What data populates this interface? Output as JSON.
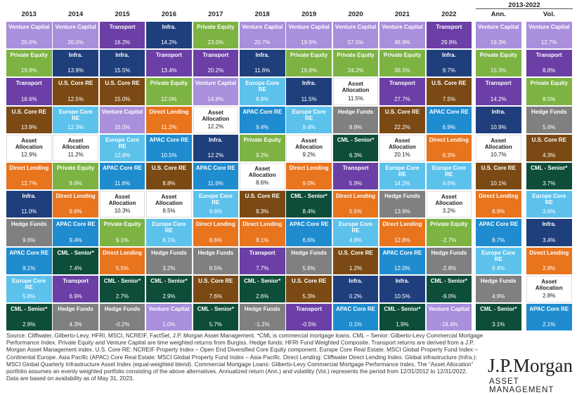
{
  "header": {
    "span": "2013-2022",
    "columns": [
      "2013",
      "2014",
      "2015",
      "2016",
      "2017",
      "2018",
      "2019",
      "2020",
      "2021",
      "2022",
      "Ann.",
      "Vol."
    ]
  },
  "table": {
    "columns": [
      [
        {
          "label": "Venture Capital",
          "value": "26.0%",
          "color": "#a98fdc"
        },
        {
          "label": "Private Equity",
          "value": "19.8%",
          "color": "#7cb342"
        },
        {
          "label": "Transport",
          "value": "18.6%",
          "color": "#6b3fa6"
        },
        {
          "label": "U.S. Core RE",
          "value": "13.9%",
          "color": "#7b4a14"
        },
        {
          "label": "Asset Allocation",
          "value": "12.9%",
          "color": "#ffffff"
        },
        {
          "label": "Direct Lending",
          "value": "12.7%",
          "color": "#e8741e"
        },
        {
          "label": "Infra.",
          "value": "11.0%",
          "color": "#1f3f7c"
        },
        {
          "label": "Hedge Funds",
          "value": "9.6%",
          "color": "#808080"
        },
        {
          "label": "APAC Core RE",
          "value": "9.1%",
          "color": "#1f8ccf"
        },
        {
          "label": "Europe Core RE",
          "value": "5.8%",
          "color": "#5cc2ec"
        },
        {
          "label": "CML - Senior*",
          "value": "2.9%",
          "color": "#0d4d3a"
        }
      ],
      [
        {
          "label": "Venture Capital",
          "value": "26.0%",
          "color": "#a98fdc"
        },
        {
          "label": "Infra.",
          "value": "13.9%",
          "color": "#1f3f7c"
        },
        {
          "label": "U.S. Core RE",
          "value": "12.5%",
          "color": "#7b4a14"
        },
        {
          "label": "Europe Core RE",
          "value": "12.3%",
          "color": "#5cc2ec"
        },
        {
          "label": "Asset Allocation",
          "value": "11.2%",
          "color": "#ffffff"
        },
        {
          "label": "Private Equity",
          "value": "9.8%",
          "color": "#7cb342"
        },
        {
          "label": "Direct Lending",
          "value": "9.6%",
          "color": "#e8741e"
        },
        {
          "label": "APAC Core RE",
          "value": "9.4%",
          "color": "#1f8ccf"
        },
        {
          "label": "CML - Senior*",
          "value": "7.4%",
          "color": "#0d4d3a"
        },
        {
          "label": "Transport",
          "value": "6.9%",
          "color": "#6b3fa6"
        },
        {
          "label": "Hedge Funds",
          "value": "4.3%",
          "color": "#808080"
        }
      ],
      [
        {
          "label": "Transport",
          "value": "16.2%",
          "color": "#6b3fa6"
        },
        {
          "label": "Infra.",
          "value": "15.5%",
          "color": "#1f3f7c"
        },
        {
          "label": "U.S. Core RE",
          "value": "15.0%",
          "color": "#7b4a14"
        },
        {
          "label": "Venture Capital",
          "value": "15.0%",
          "color": "#a98fdc"
        },
        {
          "label": "Europe Core RE",
          "value": "12.8%",
          "color": "#5cc2ec"
        },
        {
          "label": "APAC Core RE",
          "value": "11.6%",
          "color": "#1f8ccf"
        },
        {
          "label": "Asset Allocation",
          "value": "10.3%",
          "color": "#ffffff"
        },
        {
          "label": "Private Equity",
          "value": "9.1%",
          "color": "#7cb342"
        },
        {
          "label": "Direct Lending",
          "value": "5.5%",
          "color": "#e8741e"
        },
        {
          "label": "CML - Senior*",
          "value": "2.7%",
          "color": "#0d4d3a"
        },
        {
          "label": "Hedge Funds",
          "value": "-0.2%",
          "color": "#808080"
        }
      ],
      [
        {
          "label": "Infra.",
          "value": "14.2%",
          "color": "#1f3f7c"
        },
        {
          "label": "Transport",
          "value": "13.4%",
          "color": "#6b3fa6"
        },
        {
          "label": "Private Equity",
          "value": "12.0%",
          "color": "#7cb342"
        },
        {
          "label": "Direct Lending",
          "value": "11.2%",
          "color": "#e8741e"
        },
        {
          "label": "APAC Core RE",
          "value": "10.5%",
          "color": "#1f8ccf"
        },
        {
          "label": "U.S. Core RE",
          "value": "8.8%",
          "color": "#7b4a14"
        },
        {
          "label": "Asset Allocation",
          "value": "8.5%",
          "color": "#ffffff"
        },
        {
          "label": "Europe Core RE",
          "value": "8.1%",
          "color": "#5cc2ec"
        },
        {
          "label": "Hedge Funds",
          "value": "3.2%",
          "color": "#808080"
        },
        {
          "label": "CML - Senior*",
          "value": "2.9%",
          "color": "#0d4d3a"
        },
        {
          "label": "Venture Capital",
          "value": "1.0%",
          "color": "#a98fdc"
        }
      ],
      [
        {
          "label": "Private Equity",
          "value": "23.0%",
          "color": "#7cb342"
        },
        {
          "label": "Transport",
          "value": "20.2%",
          "color": "#6b3fa6"
        },
        {
          "label": "Venture Capital",
          "value": "14.8%",
          "color": "#a98fdc"
        },
        {
          "label": "Asset Allocation",
          "value": "12.2%",
          "color": "#ffffff"
        },
        {
          "label": "Infra.",
          "value": "12.2%",
          "color": "#1f3f7c"
        },
        {
          "label": "APAC Core RE",
          "value": "11.6%",
          "color": "#1f8ccf"
        },
        {
          "label": "Europe Core RE",
          "value": "9.6%",
          "color": "#5cc2ec"
        },
        {
          "label": "Direct Lending",
          "value": "8.6%",
          "color": "#e8741e"
        },
        {
          "label": "Hedge Funds",
          "value": "8.5%",
          "color": "#808080"
        },
        {
          "label": "U.S. Core RE",
          "value": "7.6%",
          "color": "#7b4a14"
        },
        {
          "label": "CML - Senior*",
          "value": "5.7%",
          "color": "#0d4d3a"
        }
      ],
      [
        {
          "label": "Venture Capital",
          "value": "20.7%",
          "color": "#a98fdc"
        },
        {
          "label": "Infra.",
          "value": "11.6%",
          "color": "#1f3f7c"
        },
        {
          "label": "Europe Core RE",
          "value": "9.8%",
          "color": "#5cc2ec"
        },
        {
          "label": "APAC Core RE",
          "value": "9.4%",
          "color": "#1f8ccf"
        },
        {
          "label": "Private Equity",
          "value": "9.2%",
          "color": "#7cb342"
        },
        {
          "label": "Asset Allocation",
          "value": "8.6%",
          "color": "#ffffff"
        },
        {
          "label": "U.S. Core RE",
          "value": "8.3%",
          "color": "#7b4a14"
        },
        {
          "label": "Direct Lending",
          "value": "8.1%",
          "color": "#e8741e"
        },
        {
          "label": "Transport",
          "value": "7.7%",
          "color": "#6b3fa6"
        },
        {
          "label": "CML - Senior*",
          "value": "2.6%",
          "color": "#0d4d3a"
        },
        {
          "label": "Hedge Funds",
          "value": "-1.2%",
          "color": "#808080"
        }
      ],
      [
        {
          "label": "Venture Capital",
          "value": "19.9%",
          "color": "#a98fdc"
        },
        {
          "label": "Private Equity",
          "value": "16.8%",
          "color": "#7cb342"
        },
        {
          "label": "Infra.",
          "value": "11.5%",
          "color": "#1f3f7c"
        },
        {
          "label": "Europe Core RE",
          "value": "9.4%",
          "color": "#5cc2ec"
        },
        {
          "label": "Asset Allocation",
          "value": "9.2%",
          "color": "#ffffff"
        },
        {
          "label": "Direct Lending",
          "value": "9.0%",
          "color": "#e8741e"
        },
        {
          "label": "CML - Senior*",
          "value": "8.4%",
          "color": "#0d4d3a"
        },
        {
          "label": "APAC Core RE",
          "value": "6.6%",
          "color": "#1f8ccf"
        },
        {
          "label": "Hedge Funds",
          "value": "5.6%",
          "color": "#808080"
        },
        {
          "label": "U.S. Core RE",
          "value": "5.3%",
          "color": "#7b4a14"
        },
        {
          "label": "Transport",
          "value": "-0.5%",
          "color": "#6b3fa6"
        }
      ],
      [
        {
          "label": "Venture Capital",
          "value": "57.5%",
          "color": "#a98fdc"
        },
        {
          "label": "Private Equity",
          "value": "24.2%",
          "color": "#7cb342"
        },
        {
          "label": "Asset Allocation",
          "value": "11.5%",
          "color": "#ffffff"
        },
        {
          "label": "Hedge Funds",
          "value": "8.9%",
          "color": "#808080"
        },
        {
          "label": "CML - Senior*",
          "value": "6.3%",
          "color": "#0d4d3a"
        },
        {
          "label": "Transport",
          "value": "5.9%",
          "color": "#6b3fa6"
        },
        {
          "label": "Direct Lending",
          "value": "5.5%",
          "color": "#e8741e"
        },
        {
          "label": "Europe Core RE",
          "value": "4.8%",
          "color": "#5cc2ec"
        },
        {
          "label": "U.S. Core RE",
          "value": "1.2%",
          "color": "#7b4a14"
        },
        {
          "label": "Infra.",
          "value": "0.2%",
          "color": "#1f3f7c"
        },
        {
          "label": "APAC Core RE",
          "value": "0.1%",
          "color": "#1f8ccf"
        }
      ],
      [
        {
          "label": "Venture Capital",
          "value": "46.9%",
          "color": "#a98fdc"
        },
        {
          "label": "Private Equity",
          "value": "36.5%",
          "color": "#7cb342"
        },
        {
          "label": "Transport",
          "value": "27.7%",
          "color": "#6b3fa6"
        },
        {
          "label": "U.S. Core RE",
          "value": "22.2%",
          "color": "#7b4a14"
        },
        {
          "label": "Asset Allocation",
          "value": "20.1%",
          "color": "#ffffff"
        },
        {
          "label": "Europe Core RE",
          "value": "14.2%",
          "color": "#5cc2ec"
        },
        {
          "label": "Hedge Funds",
          "value": "13.9%",
          "color": "#808080"
        },
        {
          "label": "Direct Lending",
          "value": "12.8%",
          "color": "#e8741e"
        },
        {
          "label": "APAC Core RE",
          "value": "12.0%",
          "color": "#1f8ccf"
        },
        {
          "label": "Infra.",
          "value": "10.5%",
          "color": "#1f3f7c"
        },
        {
          "label": "CML - Senior*",
          "value": "1.9%",
          "color": "#0d4d3a"
        }
      ],
      [
        {
          "label": "Transport",
          "value": "29.9%",
          "color": "#6b3fa6"
        },
        {
          "label": "Infra.",
          "value": "9.7%",
          "color": "#1f3f7c"
        },
        {
          "label": "U.S. Core RE",
          "value": "7.5%",
          "color": "#7b4a14"
        },
        {
          "label": "APAC Core RE",
          "value": "6.9%",
          "color": "#1f8ccf"
        },
        {
          "label": "Direct Lending",
          "value": "6.3%",
          "color": "#e8741e"
        },
        {
          "label": "Europe Core RE",
          "value": "4.6%",
          "color": "#5cc2ec"
        },
        {
          "label": "Asset Allocation",
          "value": "3.2%",
          "color": "#ffffff"
        },
        {
          "label": "Private Equity",
          "value": "-2.7%",
          "color": "#7cb342"
        },
        {
          "label": "Hedge Funds",
          "value": "-2.8%",
          "color": "#808080"
        },
        {
          "label": "CML - Senior*",
          "value": "-9.0%",
          "color": "#0d4d3a"
        },
        {
          "label": "Venture Capital",
          "value": "-18.4%",
          "color": "#a98fdc"
        }
      ],
      [
        {
          "label": "Venture Capital",
          "value": "19.3%",
          "color": "#a98fdc"
        },
        {
          "label": "Private Equity",
          "value": "15.3%",
          "color": "#7cb342"
        },
        {
          "label": "Transport",
          "value": "14.2%",
          "color": "#6b3fa6"
        },
        {
          "label": "Infra.",
          "value": "10.9%",
          "color": "#1f3f7c"
        },
        {
          "label": "Asset Allocation",
          "value": "10.7%",
          "color": "#ffffff"
        },
        {
          "label": "U.S. Core RE",
          "value": "10.1%",
          "color": "#7b4a14"
        },
        {
          "label": "Direct Lending",
          "value": "8.9%",
          "color": "#e8741e"
        },
        {
          "label": "APAC Core RE",
          "value": "8.7%",
          "color": "#1f8ccf"
        },
        {
          "label": "Europe Core RE",
          "value": "6.4%",
          "color": "#5cc2ec"
        },
        {
          "label": "Hedge Funds",
          "value": "4.9%",
          "color": "#808080"
        },
        {
          "label": "CML - Senior*",
          "value": "3.1%",
          "color": "#0d4d3a"
        }
      ],
      [
        {
          "label": "Venture Capital",
          "value": "12.7%",
          "color": "#a98fdc"
        },
        {
          "label": "Transport",
          "value": "8.8%",
          "color": "#6b3fa6"
        },
        {
          "label": "Private Equity",
          "value": "8.5%",
          "color": "#7cb342"
        },
        {
          "label": "Hedge Funds",
          "value": "5.6%",
          "color": "#808080"
        },
        {
          "label": "U.S. Core RE",
          "value": "4.3%",
          "color": "#7b4a14"
        },
        {
          "label": "CML - Senior*",
          "value": "3.7%",
          "color": "#0d4d3a"
        },
        {
          "label": "Europe Core RE",
          "value": "3.6%",
          "color": "#5cc2ec"
        },
        {
          "label": "Infra.",
          "value": "3.4%",
          "color": "#1f3f7c"
        },
        {
          "label": "Direct Lending",
          "value": "2.9%",
          "color": "#e8741e"
        },
        {
          "label": "Asset Allocation",
          "value": "2.8%",
          "color": "#ffffff"
        },
        {
          "label": "APAC Core RE",
          "value": "2.1%",
          "color": "#1f8ccf"
        }
      ]
    ]
  },
  "footer": {
    "source": "Source: Cliffwater, Gilberto-Levy, HFRI, MSCI, NCREIF, FactSet, J.P. Morgan Asset Management. *CML is commercial mortgage loans. CML – Senior: Gilberto-Levy Commercial Mortgage Performance Index. Private Equity and Venture Capital are time weighted returns from Burgiss. Hedge funds: HFRI Fund Weighted Composite. Transport returns are derived from a J.P. Morgan Asset Management index. U.S. Core RE: NCREIF Property Index – Open End Diversified Core Equity component. Europe Core Real Estate: MSCI Global Property Fund Index – Continental Europe. Asia Pacific (APAC) Core Real Estate: MSCI Global Property Fund Index – Asia-Pacific. Direct Lending: Cliffwater Direct Lending Index. Global infrastructure (Infra.): MSCI Global Quarterly Infrastructure Asset Index (equal-weighted blend). Commercial Mortgage Loans: Gilberto-Levy Commercial Mortgage Performance Index. The “Asset Allocation” portfolio assumes an evenly weighted portfolio consisting of the above alternatives. Annualized return (Ann.) and volatility (Vol.) represents the period from 12/31/2012 to 12/31/2022.",
    "note": "Data are based on availability as of May 31, 2023.",
    "brand": "J.P.Morgan",
    "division": "ASSET MANAGEMENT"
  }
}
